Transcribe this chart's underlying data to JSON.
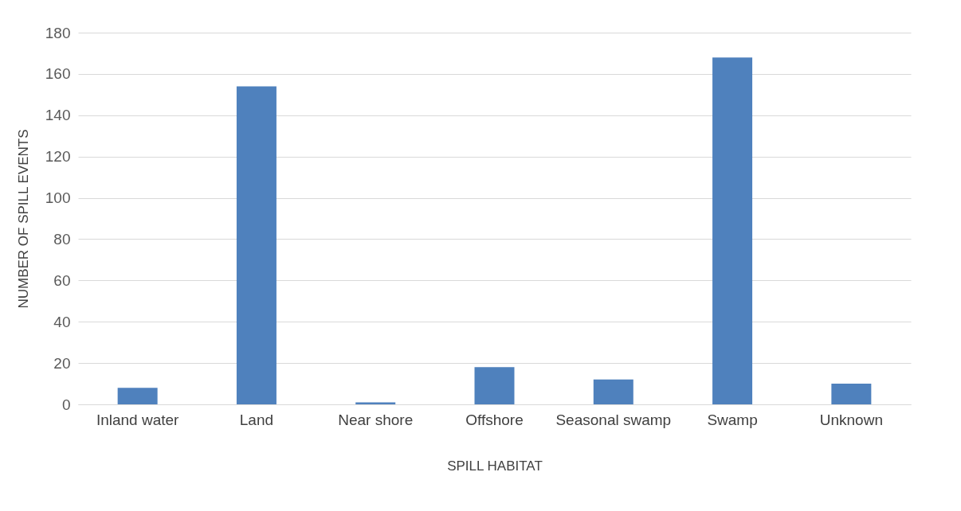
{
  "chart_data": {
    "type": "bar",
    "xlabel": "SPILL HABITAT",
    "ylabel": "NUMBER OF SPILL EVENTS",
    "categories": [
      "Inland water",
      "Land",
      "Near shore",
      "Offshore",
      "Seasonal swamp",
      "Swamp",
      "Unknown"
    ],
    "values": [
      8,
      154,
      1,
      18,
      12,
      168,
      10
    ],
    "color": "#4f81bd",
    "ylim": [
      0,
      180
    ],
    "yticks": [
      0,
      20,
      40,
      60,
      80,
      100,
      120,
      140,
      160,
      180
    ],
    "grid": "y"
  }
}
